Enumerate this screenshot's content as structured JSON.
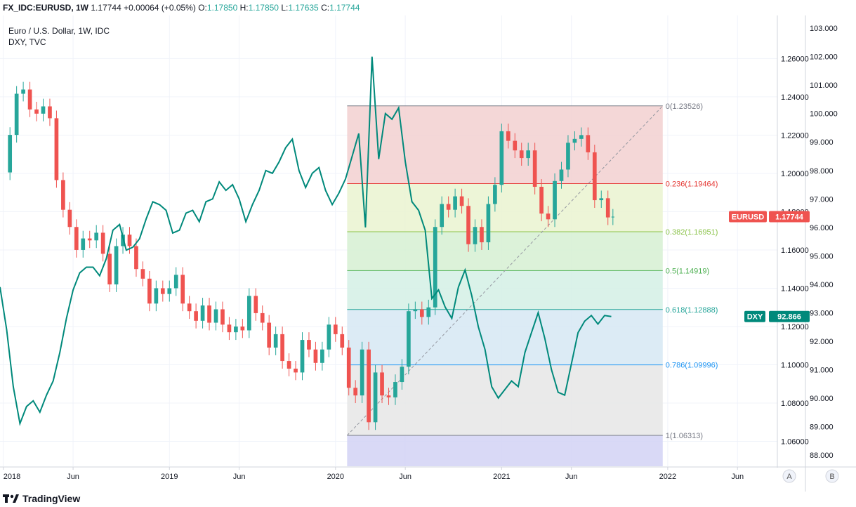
{
  "header": {
    "symbol": "FX_IDC:EURUSD, 1W",
    "last": "1.17744",
    "change": "+0.00064 (+0.05%)",
    "o_label": "O:",
    "o": "1.17850",
    "h_label": "H:",
    "h": "1.17850",
    "l_label": "L:",
    "l": "1.17635",
    "c_label": "C:",
    "c": "1.17744"
  },
  "legend": {
    "main": "Euro / U.S. Dollar, 1W, IDC",
    "overlay": "DXY, TVC"
  },
  "price_tags": {
    "eurusd_label": "EURUSD",
    "eurusd_value": "1.17744",
    "dxy_label": "DXY",
    "dxy_value": "92.866"
  },
  "scale_buttons": {
    "a": "A",
    "b": "B"
  },
  "branding": "TradingView",
  "colors": {
    "up": "#26a69a",
    "down": "#ef5350",
    "dxy_line": "#00897b",
    "eurusd_tag": "#ef5350",
    "dxy_tag": "#00897b"
  },
  "chart_data": {
    "type": "candlestick",
    "title": "Euro / U.S. Dollar, 1W, IDC",
    "x_tick_labels": [
      "2018",
      "Jun",
      "2019",
      "Jun",
      "2020",
      "Jun",
      "2021",
      "Jun",
      "2022",
      "Jun"
    ],
    "x_ticks": [
      2018.0,
      2018.42,
      2019.0,
      2019.42,
      2020.0,
      2020.42,
      2021.0,
      2021.42,
      2022.0,
      2022.42
    ],
    "x_range": [
      2017.98,
      2022.66
    ],
    "left_axis": {
      "name": "EURUSD",
      "range": [
        1.047,
        1.2825
      ],
      "ticks": [
        "1.26000",
        "1.24000",
        "1.22000",
        "1.20000",
        "1.18000",
        "1.16000",
        "1.14000",
        "1.12000",
        "1.10000",
        "1.08000",
        "1.06000"
      ]
    },
    "right_axis": {
      "name": "DXY",
      "range": [
        87.6,
        103.45
      ],
      "ticks": [
        "103.000",
        "102.000",
        "101.000",
        "100.000",
        "99.000",
        "98.000",
        "97.000",
        "96.000",
        "95.000",
        "94.000",
        "93.000",
        "92.000",
        "91.000",
        "90.000",
        "89.000",
        "88.000"
      ]
    },
    "grid": true,
    "fibonacci": {
      "start": 2020.07,
      "end": 2021.97,
      "levels": [
        {
          "ratio": "0",
          "price": 1.23526,
          "label": "0(1.23526)",
          "color": "#787b86",
          "fill": "#f2d0d0"
        },
        {
          "ratio": "0.236",
          "price": 1.19464,
          "label": "0.236(1.19464)",
          "color": "#e53935",
          "fill": "#eaf3d0"
        },
        {
          "ratio": "0.382",
          "price": 1.16951,
          "label": "0.382(1.16951)",
          "color": "#8bc34a",
          "fill": "#d6f0d2"
        },
        {
          "ratio": "0.5",
          "price": 1.14919,
          "label": "0.5(1.14919)",
          "color": "#4caf50",
          "fill": "#d3f0e5"
        },
        {
          "ratio": "0.618",
          "price": 1.12888,
          "label": "0.618(1.12888)",
          "color": "#26a69a",
          "fill": "#d6e8f3"
        },
        {
          "ratio": "0.786",
          "price": 1.09996,
          "label": "0.786(1.09996)",
          "color": "#2196f3",
          "fill": "#e6e6e6"
        },
        {
          "ratio": "1",
          "price": 1.06313,
          "label": "1(1.06313)",
          "color": "#787b86",
          "fill": "#d2d2f5"
        }
      ]
    },
    "eurusd_closes": [
      [
        2018.0,
        1.2005
      ],
      [
        2018.04,
        1.2201
      ],
      [
        2018.08,
        1.2416
      ],
      [
        2018.12,
        1.2438
      ],
      [
        2018.16,
        1.2334
      ],
      [
        2018.2,
        1.2312
      ],
      [
        2018.24,
        1.235
      ],
      [
        2018.28,
        1.2288
      ],
      [
        2018.32,
        1.1965
      ],
      [
        2018.36,
        1.181
      ],
      [
        2018.4,
        1.172
      ],
      [
        2018.44,
        1.16
      ],
      [
        2018.48,
        1.166
      ],
      [
        2018.52,
        1.165
      ],
      [
        2018.56,
        1.169
      ],
      [
        2018.6,
        1.158
      ],
      [
        2018.64,
        1.142
      ],
      [
        2018.68,
        1.162
      ],
      [
        2018.72,
        1.168
      ],
      [
        2018.76,
        1.162
      ],
      [
        2018.8,
        1.15
      ],
      [
        2018.84,
        1.145
      ],
      [
        2018.88,
        1.132
      ],
      [
        2018.92,
        1.14
      ],
      [
        2018.96,
        1.137
      ],
      [
        2019.0,
        1.14
      ],
      [
        2019.04,
        1.147
      ],
      [
        2019.08,
        1.132
      ],
      [
        2019.12,
        1.128
      ],
      [
        2019.16,
        1.123
      ],
      [
        2019.2,
        1.131
      ],
      [
        2019.24,
        1.122
      ],
      [
        2019.28,
        1.129
      ],
      [
        2019.32,
        1.121
      ],
      [
        2019.36,
        1.117
      ],
      [
        2019.4,
        1.12
      ],
      [
        2019.44,
        1.118
      ],
      [
        2019.48,
        1.136
      ],
      [
        2019.52,
        1.127
      ],
      [
        2019.56,
        1.122
      ],
      [
        2019.6,
        1.109
      ],
      [
        2019.64,
        1.116
      ],
      [
        2019.68,
        1.102
      ],
      [
        2019.72,
        1.098
      ],
      [
        2019.76,
        1.096
      ],
      [
        2019.8,
        1.113
      ],
      [
        2019.84,
        1.108
      ],
      [
        2019.88,
        1.101
      ],
      [
        2019.92,
        1.108
      ],
      [
        2019.96,
        1.121
      ],
      [
        2020.0,
        1.116
      ],
      [
        2020.04,
        1.109
      ],
      [
        2020.08,
        1.088
      ],
      [
        2020.12,
        1.084
      ],
      [
        2020.16,
        1.108
      ],
      [
        2020.2,
        1.07
      ],
      [
        2020.24,
        1.096
      ],
      [
        2020.28,
        1.084
      ],
      [
        2020.32,
        1.083
      ],
      [
        2020.36,
        1.091
      ],
      [
        2020.4,
        1.099
      ],
      [
        2020.44,
        1.128
      ],
      [
        2020.48,
        1.129
      ],
      [
        2020.52,
        1.125
      ],
      [
        2020.56,
        1.13
      ],
      [
        2020.6,
        1.172
      ],
      [
        2020.64,
        1.184
      ],
      [
        2020.68,
        1.181
      ],
      [
        2020.72,
        1.188
      ],
      [
        2020.76,
        1.183
      ],
      [
        2020.8,
        1.163
      ],
      [
        2020.84,
        1.172
      ],
      [
        2020.88,
        1.164
      ],
      [
        2020.92,
        1.184
      ],
      [
        2020.96,
        1.194
      ],
      [
        2021.0,
        1.222
      ],
      [
        2021.04,
        1.217
      ],
      [
        2021.08,
        1.212
      ],
      [
        2021.12,
        1.208
      ],
      [
        2021.16,
        1.212
      ],
      [
        2021.2,
        1.193
      ],
      [
        2021.24,
        1.179
      ],
      [
        2021.28,
        1.176
      ],
      [
        2021.32,
        1.196
      ],
      [
        2021.36,
        1.202
      ],
      [
        2021.4,
        1.216
      ],
      [
        2021.44,
        1.218
      ],
      [
        2021.48,
        1.22
      ],
      [
        2021.52,
        1.211
      ],
      [
        2021.56,
        1.186
      ],
      [
        2021.6,
        1.187
      ],
      [
        2021.64,
        1.177
      ],
      [
        2021.67,
        1.1774
      ]
    ],
    "dxy_line": [
      [
        2017.98,
        93.9
      ],
      [
        2018.02,
        92.4
      ],
      [
        2018.06,
        90.4
      ],
      [
        2018.1,
        89.1
      ],
      [
        2018.14,
        89.7
      ],
      [
        2018.18,
        89.9
      ],
      [
        2018.22,
        89.5
      ],
      [
        2018.26,
        90.1
      ],
      [
        2018.3,
        90.6
      ],
      [
        2018.34,
        91.6
      ],
      [
        2018.38,
        92.8
      ],
      [
        2018.42,
        93.8
      ],
      [
        2018.46,
        94.4
      ],
      [
        2018.5,
        94.6
      ],
      [
        2018.54,
        94.6
      ],
      [
        2018.58,
        94.3
      ],
      [
        2018.62,
        94.9
      ],
      [
        2018.66,
        95.9
      ],
      [
        2018.7,
        96.1
      ],
      [
        2018.74,
        95.2
      ],
      [
        2018.78,
        95.3
      ],
      [
        2018.82,
        95.6
      ],
      [
        2018.86,
        96.3
      ],
      [
        2018.9,
        96.9
      ],
      [
        2018.94,
        96.8
      ],
      [
        2018.98,
        96.6
      ],
      [
        2019.02,
        95.8
      ],
      [
        2019.06,
        95.9
      ],
      [
        2019.1,
        96.5
      ],
      [
        2019.14,
        96.6
      ],
      [
        2019.18,
        96.2
      ],
      [
        2019.22,
        96.9
      ],
      [
        2019.26,
        97.0
      ],
      [
        2019.3,
        97.6
      ],
      [
        2019.34,
        97.3
      ],
      [
        2019.38,
        97.5
      ],
      [
        2019.42,
        97.0
      ],
      [
        2019.46,
        96.2
      ],
      [
        2019.5,
        96.8
      ],
      [
        2019.54,
        97.3
      ],
      [
        2019.58,
        98.0
      ],
      [
        2019.62,
        97.9
      ],
      [
        2019.66,
        98.3
      ],
      [
        2019.7,
        98.8
      ],
      [
        2019.74,
        99.1
      ],
      [
        2019.78,
        98.0
      ],
      [
        2019.82,
        97.4
      ],
      [
        2019.86,
        97.9
      ],
      [
        2019.9,
        98.1
      ],
      [
        2019.94,
        97.3
      ],
      [
        2019.98,
        96.8
      ],
      [
        2020.02,
        97.2
      ],
      [
        2020.06,
        97.7
      ],
      [
        2020.1,
        98.5
      ],
      [
        2020.14,
        99.3
      ],
      [
        2020.18,
        96.0
      ],
      [
        2020.22,
        102.0
      ],
      [
        2020.26,
        98.4
      ],
      [
        2020.3,
        100.0
      ],
      [
        2020.34,
        99.8
      ],
      [
        2020.38,
        100.2
      ],
      [
        2020.42,
        98.3
      ],
      [
        2020.46,
        96.9
      ],
      [
        2020.5,
        96.6
      ],
      [
        2020.54,
        95.9
      ],
      [
        2020.58,
        93.5
      ],
      [
        2020.62,
        93.8
      ],
      [
        2020.66,
        93.2
      ],
      [
        2020.7,
        92.8
      ],
      [
        2020.74,
        93.9
      ],
      [
        2020.78,
        94.5
      ],
      [
        2020.82,
        93.6
      ],
      [
        2020.86,
        92.5
      ],
      [
        2020.9,
        91.7
      ],
      [
        2020.94,
        90.4
      ],
      [
        2020.98,
        90.0
      ],
      [
        2021.02,
        90.3
      ],
      [
        2021.06,
        90.6
      ],
      [
        2021.1,
        90.4
      ],
      [
        2021.14,
        91.6
      ],
      [
        2021.18,
        92.3
      ],
      [
        2021.22,
        93.0
      ],
      [
        2021.26,
        92.1
      ],
      [
        2021.3,
        91.0
      ],
      [
        2021.34,
        90.2
      ],
      [
        2021.38,
        90.1
      ],
      [
        2021.42,
        91.2
      ],
      [
        2021.46,
        92.3
      ],
      [
        2021.5,
        92.7
      ],
      [
        2021.54,
        92.9
      ],
      [
        2021.58,
        92.6
      ],
      [
        2021.62,
        92.9
      ],
      [
        2021.66,
        92.866
      ]
    ]
  }
}
